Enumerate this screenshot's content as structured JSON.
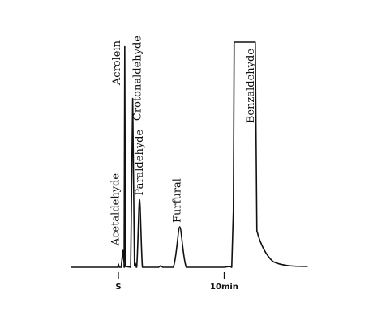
{
  "chart_data": {
    "type": "line",
    "title": "",
    "xlabel": "",
    "ylabel": "",
    "xlim": [
      -0.2,
      17.5
    ],
    "ylim": [
      0,
      100
    ],
    "grid": false,
    "x_ticks": [
      {
        "x": 0,
        "label": "S"
      },
      {
        "x": 10,
        "label": "10min"
      }
    ],
    "peaks": [
      {
        "name": "Acetaldehyde",
        "time": 0.42,
        "height": 7.5
      },
      {
        "name": "Acrolein",
        "time": 0.6,
        "height": 98
      },
      {
        "name": "Crotonaldehyde",
        "time": 1.35,
        "height": 75
      },
      {
        "name": "Paraldehyde",
        "time": 2.0,
        "height": 30
      },
      {
        "name": "Furfural",
        "time": 5.8,
        "height": 18
      },
      {
        "name": "Benzaldehyde",
        "time": 11.4,
        "height": 100
      }
    ]
  }
}
